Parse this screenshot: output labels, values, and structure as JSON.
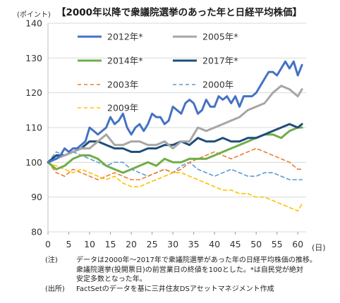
{
  "chart_data": {
    "type": "line",
    "title": "【2000年以降で衆議院選挙のあった年と日経平均株価】",
    "ylabel": "(ポイント)",
    "xlabel_unit": "(日)",
    "xlim": [
      0,
      62
    ],
    "ylim": [
      80,
      140
    ],
    "xticks": [
      0,
      5,
      10,
      15,
      20,
      25,
      30,
      35,
      40,
      45,
      50,
      55,
      60
    ],
    "yticks": [
      80,
      90,
      100,
      110,
      120,
      130,
      140
    ],
    "grid": true,
    "legend_position": "top",
    "series": [
      {
        "name": "2012年*",
        "color": "#4472C4",
        "dash": "solid",
        "width": 3,
        "x": [
          0,
          2,
          3,
          4,
          5,
          6,
          7,
          8,
          9,
          10,
          11,
          12,
          13,
          14,
          15,
          16,
          17,
          18,
          19,
          20,
          21,
          22,
          23,
          24,
          25,
          26,
          27,
          28,
          29,
          30,
          31,
          32,
          33,
          34,
          35,
          36,
          37,
          38,
          39,
          40,
          41,
          42,
          43,
          44,
          45,
          46,
          47,
          48,
          49,
          50,
          51,
          52,
          53,
          54,
          55,
          56,
          57,
          58,
          59,
          60
        ],
        "y": [
          100,
          101,
          102,
          104,
          103,
          104,
          104,
          105,
          106,
          110,
          109,
          108,
          109,
          110,
          113,
          111,
          112,
          114,
          110,
          108,
          110,
          111,
          109,
          111,
          114,
          113,
          113,
          111,
          112,
          116,
          115,
          114,
          117,
          118,
          117,
          114,
          115,
          118,
          116,
          116,
          119,
          118,
          119,
          117,
          119,
          116,
          119,
          119,
          119,
          120,
          122,
          124,
          126,
          126,
          125,
          127,
          129,
          127,
          129,
          125
        ],
        "x_end": [
          60,
          61
        ],
        "y_end": [
          125,
          128
        ]
      },
      {
        "name": "2005年*",
        "color": "#A6A6A6",
        "dash": "solid",
        "width": 3,
        "x": [
          0,
          2,
          4,
          6,
          8,
          10,
          12,
          14,
          16,
          18,
          20,
          22,
          24,
          26,
          28,
          30,
          32,
          34,
          36,
          38,
          40,
          42,
          44,
          46,
          48,
          50,
          52,
          54,
          56,
          58,
          60,
          61
        ],
        "y": [
          100,
          101,
          102,
          103,
          104,
          104,
          106,
          108,
          105,
          105,
          106,
          106,
          105,
          105,
          106,
          104,
          106,
          106,
          110,
          109,
          110,
          111,
          112,
          113,
          115,
          116,
          117,
          120,
          122,
          121,
          119,
          121
        ]
      },
      {
        "name": "2014年*",
        "color": "#70AD47",
        "dash": "solid",
        "width": 3,
        "x": [
          0,
          2,
          4,
          6,
          8,
          10,
          12,
          14,
          16,
          18,
          20,
          22,
          24,
          26,
          28,
          30,
          32,
          34,
          36,
          38,
          40,
          42,
          44,
          46,
          48,
          50,
          52,
          54,
          56,
          58,
          60,
          61
        ],
        "y": [
          100,
          98,
          99,
          101,
          102,
          102,
          101,
          99,
          98,
          97,
          98,
          99,
          100,
          99,
          101,
          100,
          100,
          101,
          101,
          101,
          102,
          103,
          104,
          105,
          106,
          107,
          108,
          108,
          107,
          109,
          110,
          110
        ]
      },
      {
        "name": "2017年*",
        "color": "#1F4E79",
        "dash": "solid",
        "width": 3,
        "x": [
          0,
          2,
          4,
          6,
          8,
          10,
          12,
          14,
          16,
          18,
          20,
          22,
          24,
          26,
          28,
          30,
          32,
          34,
          36,
          38,
          40,
          42,
          44,
          46,
          48,
          50,
          52,
          54,
          56,
          58,
          60,
          61
        ],
        "y": [
          100,
          102,
          102,
          103,
          104,
          106,
          106,
          105,
          104,
          104,
          103,
          103,
          104,
          104,
          105,
          105,
          106,
          105,
          107,
          106,
          106,
          107,
          106,
          106,
          107,
          107,
          108,
          109,
          110,
          111,
          110,
          111
        ]
      },
      {
        "name": "2003年",
        "color": "#ED7D31",
        "dash": "dashed",
        "width": 1.6,
        "x": [
          0,
          2,
          4,
          6,
          8,
          10,
          12,
          14,
          16,
          18,
          20,
          22,
          24,
          26,
          28,
          30,
          32,
          34,
          36,
          38,
          40,
          42,
          44,
          46,
          48,
          50,
          52,
          54,
          56,
          58,
          60,
          61
        ],
        "y": [
          100,
          97,
          96,
          98,
          97,
          96,
          95,
          96,
          97,
          96,
          95,
          95,
          96,
          97,
          98,
          97,
          98,
          100,
          101,
          102,
          103,
          102,
          101,
          102,
          103,
          104,
          103,
          102,
          101,
          100,
          98,
          98
        ]
      },
      {
        "name": "2000年",
        "color": "#5B9BD5",
        "dash": "dashed",
        "width": 1.6,
        "x": [
          0,
          2,
          4,
          6,
          8,
          10,
          12,
          14,
          16,
          18,
          20,
          22,
          24,
          26,
          28,
          30,
          32,
          34,
          36,
          38,
          40,
          42,
          44,
          46,
          48,
          50,
          52,
          54,
          56,
          58,
          60,
          61
        ],
        "y": [
          100,
          103,
          102,
          103,
          102,
          101,
          100,
          99,
          100,
          100,
          98,
          97,
          96,
          97,
          98,
          97,
          99,
          100,
          98,
          97,
          96,
          97,
          98,
          97,
          96,
          96,
          97,
          97,
          96,
          95,
          95,
          95
        ]
      },
      {
        "name": "2009年",
        "color": "#FFC000",
        "dash": "dashed",
        "width": 1.6,
        "x": [
          0,
          2,
          4,
          6,
          8,
          10,
          12,
          14,
          16,
          18,
          20,
          22,
          24,
          26,
          28,
          30,
          32,
          34,
          36,
          38,
          40,
          42,
          44,
          46,
          48,
          50,
          52,
          54,
          56,
          58,
          60,
          61
        ],
        "y": [
          100,
          99,
          98,
          97,
          98,
          97,
          96,
          95,
          96,
          94,
          93,
          93,
          94,
          95,
          96,
          97,
          97,
          96,
          95,
          94,
          93,
          92,
          92,
          91,
          91,
          90,
          90,
          89,
          88,
          87,
          86,
          88
        ]
      }
    ]
  },
  "notes": {
    "label1": "(注)",
    "line1": "データは2000年～2017年で衆議院選挙があった年の日経平均株価の推移。",
    "line2": "衆議院選挙(投開票日)の前営業日の終値を100とした。*は自民党が絶対",
    "line3": "安定多数となった年。",
    "label2": "(出所)",
    "line4": "FactSetのデータを基に三井住友DSアセットマネジメント作成"
  }
}
